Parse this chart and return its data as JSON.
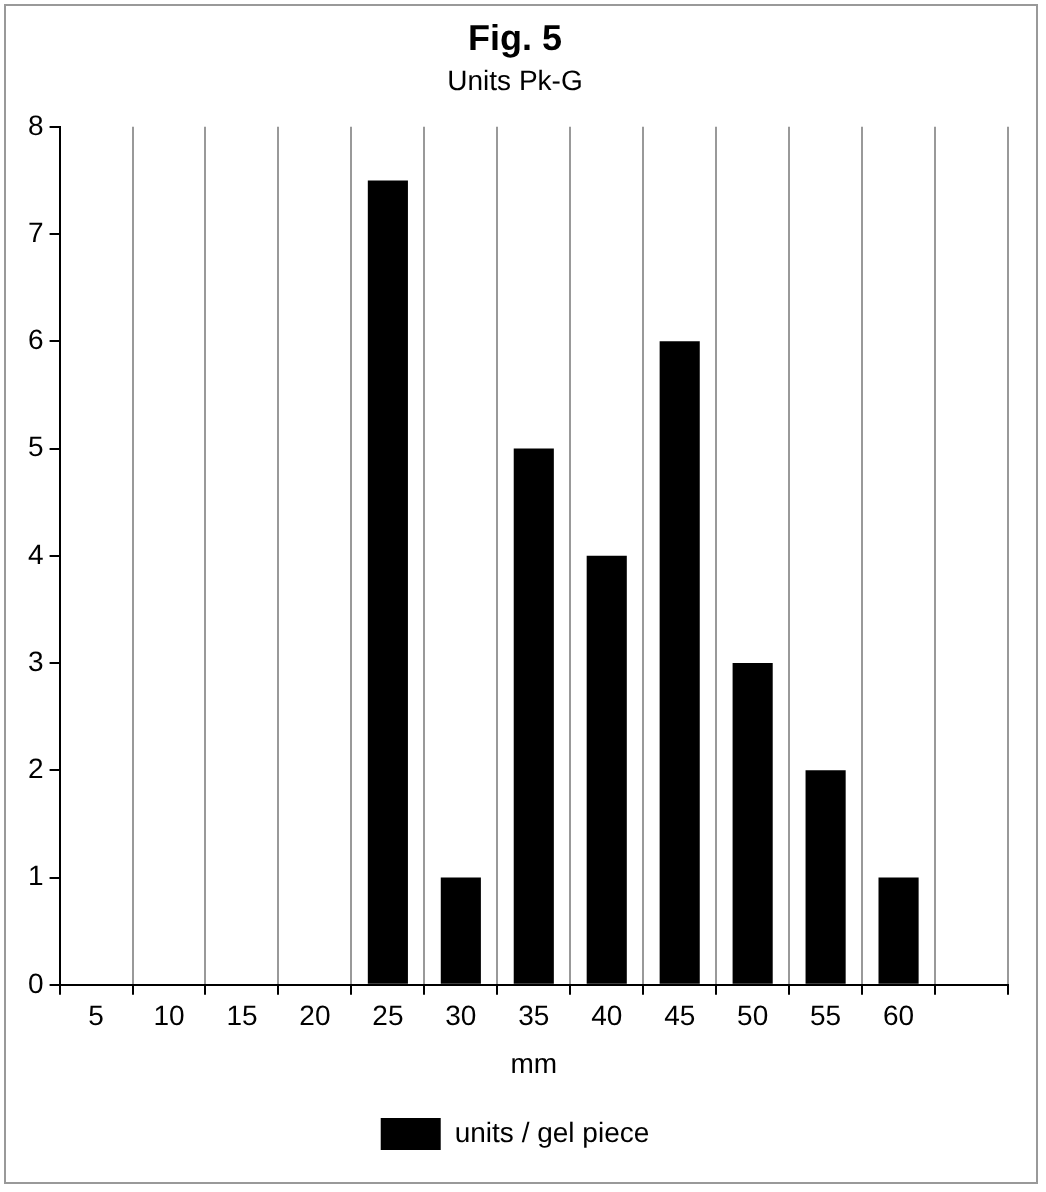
{
  "chart_data": {
    "type": "bar",
    "title": "Fig. 5",
    "subtitle": "Units Pk-G",
    "xlabel": "mm",
    "categories": [
      "5",
      "10",
      "15",
      "20",
      "25",
      "30",
      "35",
      "40",
      "45",
      "50",
      "55",
      "60",
      null
    ],
    "series": [
      {
        "name": "units / gel piece",
        "color": "#000000",
        "values": [
          0,
          0,
          0,
          0,
          7.5,
          1,
          5,
          4,
          6,
          3,
          2,
          1,
          null
        ]
      }
    ],
    "ylim": [
      0,
      8
    ],
    "yticks": [
      0,
      1,
      2,
      3,
      4,
      5,
      6,
      7,
      8
    ],
    "grid": "x",
    "legend": "bottom"
  }
}
